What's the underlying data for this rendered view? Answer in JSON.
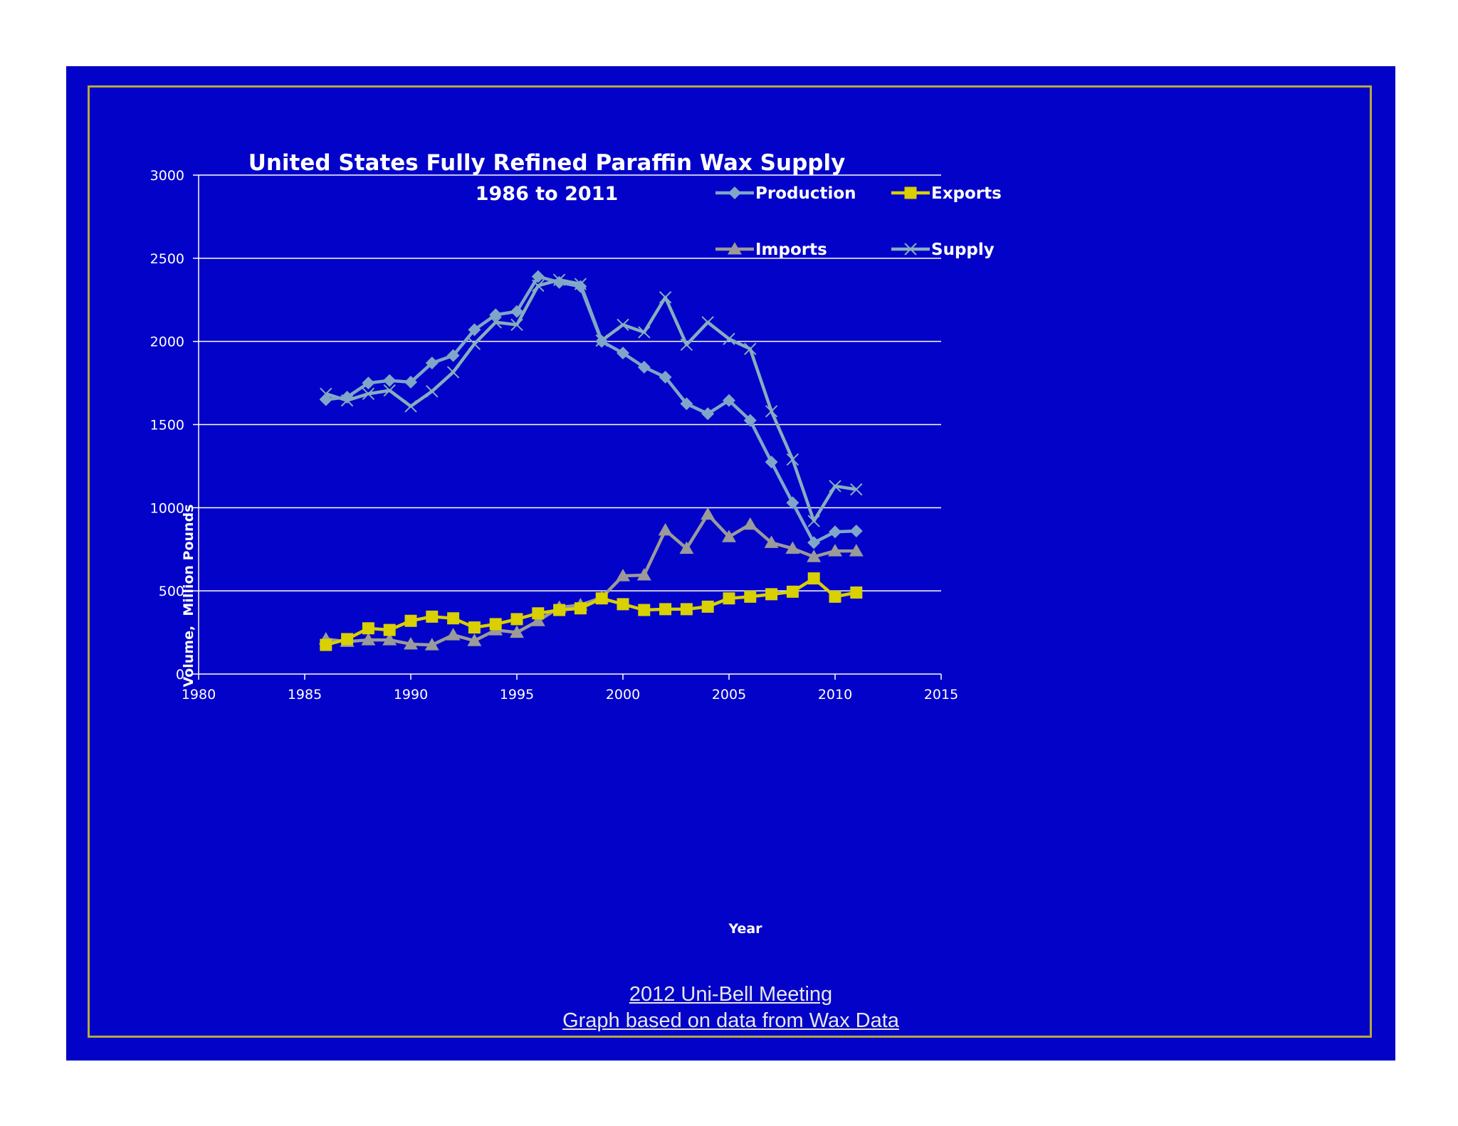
{
  "footer": {
    "line1": "2012 Uni-Bell Meeting",
    "line2": "Graph based on data from Wax Data"
  },
  "colors": {
    "background": "#0202c8",
    "frame": "#b6a93d",
    "production": "#7fa6c8",
    "supply": "#86aebe",
    "imports": "#9a9a9a",
    "exports": "#d8d000",
    "text": "#ffffff",
    "grid": "#ffffff"
  },
  "chart_data": {
    "type": "line",
    "title": "United States Fully Refined Paraffin Wax Supply",
    "subtitle": "1986 to 2011",
    "xlabel": "Year",
    "ylabel": "Volume,  Million Pounds",
    "xlim": [
      1980,
      2015
    ],
    "ylim": [
      0,
      3000
    ],
    "xticks": [
      "1980",
      "1985",
      "1990",
      "1995",
      "2000",
      "2005",
      "2010",
      "2015"
    ],
    "yticks": [
      "0",
      "500",
      "1000",
      "1500",
      "2000",
      "2500",
      "3000"
    ],
    "grid": "horizontal",
    "legend_position": "top-right",
    "x": [
      1986,
      1987,
      1988,
      1989,
      1990,
      1991,
      1992,
      1993,
      1994,
      1995,
      1996,
      1997,
      1998,
      1999,
      2000,
      2001,
      2002,
      2003,
      2004,
      2005,
      2006,
      2007,
      2008,
      2009,
      2010,
      2011
    ],
    "series": [
      {
        "name": "Production",
        "marker": "diamond",
        "values": [
          1650,
          1665,
          1750,
          1765,
          1755,
          1870,
          1915,
          2070,
          2160,
          2180,
          2390,
          2355,
          2330,
          2000,
          1930,
          1845,
          1785,
          1625,
          1565,
          1645,
          1525,
          1275,
          1030,
          790,
          855,
          860
        ]
      },
      {
        "name": "Exports",
        "marker": "square",
        "values": [
          175,
          210,
          275,
          265,
          320,
          345,
          335,
          280,
          300,
          330,
          365,
          385,
          395,
          455,
          420,
          385,
          390,
          390,
          405,
          455,
          465,
          480,
          495,
          575,
          465,
          490
        ]
      },
      {
        "name": "Imports",
        "marker": "triangle",
        "values": [
          210,
          195,
          205,
          205,
          180,
          175,
          235,
          200,
          265,
          250,
          320,
          400,
          415,
          460,
          590,
          595,
          865,
          755,
          960,
          825,
          900,
          790,
          755,
          705,
          740,
          740
        ]
      },
      {
        "name": "Supply",
        "marker": "x",
        "values": [
          1685,
          1645,
          1685,
          1705,
          1610,
          1700,
          1815,
          1985,
          2115,
          2100,
          2335,
          2370,
          2345,
          2005,
          2100,
          2055,
          2265,
          1980,
          2115,
          2015,
          1955,
          1580,
          1290,
          920,
          1130,
          1110
        ]
      }
    ]
  }
}
